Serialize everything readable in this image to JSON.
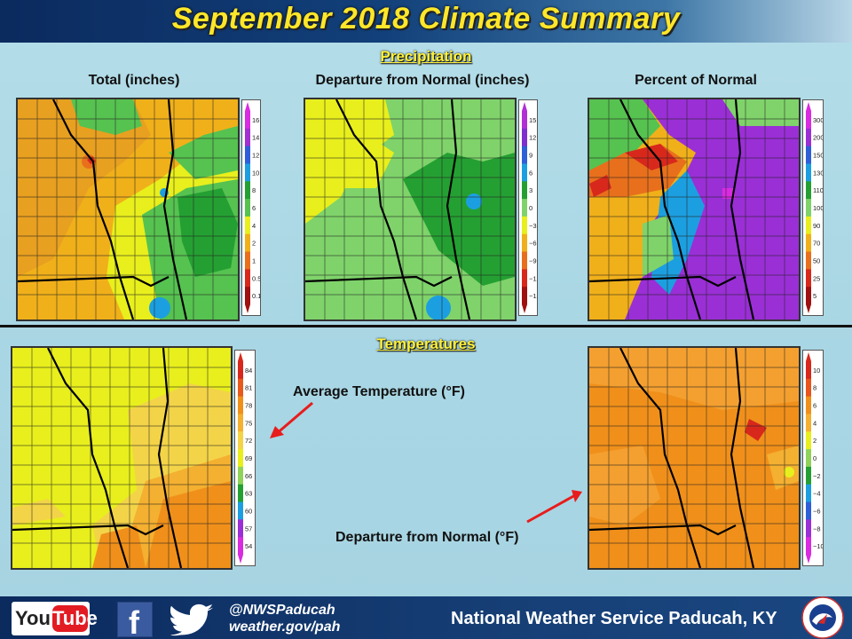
{
  "header": {
    "title": "September 2018 Climate Summary"
  },
  "sections": {
    "precipitation": "Precipitation",
    "temperatures": "Temperatures"
  },
  "maps": {
    "precip_total": {
      "title": "Total (inches)",
      "legend": [
        "16",
        "14",
        "12",
        "10",
        "8",
        "6",
        "4",
        "2",
        "1",
        "0.5",
        "0.1"
      ],
      "colors": [
        "#d92be0",
        "#a22fd1",
        "#2e5fd8",
        "#1c9fe0",
        "#24a032",
        "#56c250",
        "#e8ef1c",
        "#f0b01a",
        "#e8701c",
        "#d8281c",
        "#a01010"
      ]
    },
    "precip_departure": {
      "title": "Departure from Normal (inches)",
      "legend": [
        "15",
        "12",
        "9",
        "6",
        "3",
        "0",
        "−3",
        "−6",
        "−9",
        "−12",
        "−15"
      ],
      "colors": [
        "#b02fd8",
        "#7e2fd0",
        "#2e5fd8",
        "#1c9fe0",
        "#24a032",
        "#7fd36a",
        "#e8ef1c",
        "#f0b01a",
        "#e8701c",
        "#d8281c",
        "#a01010"
      ]
    },
    "precip_percent": {
      "title": "Percent of Normal",
      "legend": [
        "300",
        "200",
        "150",
        "130",
        "110",
        "100",
        "90",
        "70",
        "50",
        "25",
        "5"
      ],
      "colors": [
        "#d92be0",
        "#9a2fd6",
        "#2e5fd8",
        "#1c9fe0",
        "#24a032",
        "#7fd36a",
        "#e8ef1c",
        "#f0b01a",
        "#e8701c",
        "#d8281c",
        "#a01010"
      ]
    },
    "temp_avg": {
      "title": "Average Temperature (°F)",
      "legend": [
        "84",
        "81",
        "78",
        "75",
        "72",
        "69",
        "66",
        "63",
        "60",
        "57",
        "54"
      ],
      "colors": [
        "#d8281c",
        "#e85a1c",
        "#f0901a",
        "#f4b030",
        "#f3d448",
        "#e8ef1c",
        "#8fd35a",
        "#24a032",
        "#1c9fe0",
        "#9a2fd6",
        "#d92be0"
      ]
    },
    "temp_departure": {
      "title": "Departure from Normal (°F)",
      "legend": [
        "10",
        "8",
        "6",
        "4",
        "2",
        "0",
        "−2",
        "−4",
        "−6",
        "−8",
        "−10"
      ],
      "colors": [
        "#d8281c",
        "#e8541c",
        "#f0901a",
        "#f4b030",
        "#e8ef1c",
        "#8fd35a",
        "#24a032",
        "#1c9fe0",
        "#2e5fd8",
        "#9a2fd6",
        "#d92be0"
      ]
    }
  },
  "footer": {
    "youtube_you": "You",
    "youtube_tube": "Tube",
    "facebook_letter": "f",
    "handle": "@NWSPaducah",
    "website": "weather.gov/pah",
    "office": "National Weather Service Paducah, KY"
  },
  "icons": [
    "youtube-icon",
    "facebook-icon",
    "twitter-icon",
    "nws-logo-icon"
  ]
}
